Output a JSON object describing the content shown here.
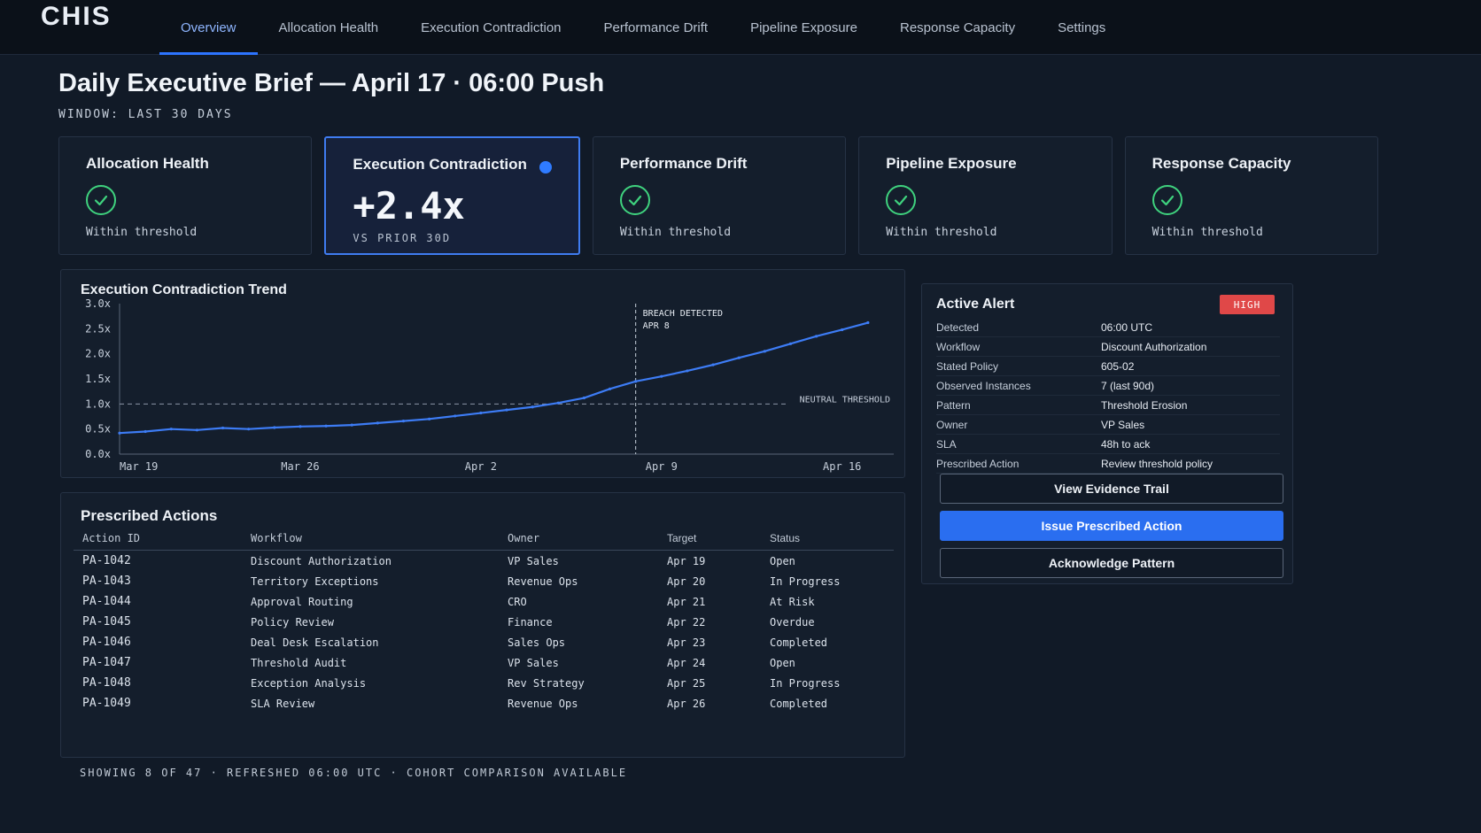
{
  "app": {
    "brand": "CHIS"
  },
  "nav": {
    "tabs": [
      {
        "label": "Overview",
        "active": true
      },
      {
        "label": "Allocation Health"
      },
      {
        "label": "Execution Contradiction"
      },
      {
        "label": "Performance Drift"
      },
      {
        "label": "Pipeline Exposure"
      },
      {
        "label": "Response Capacity"
      },
      {
        "label": "Settings"
      }
    ]
  },
  "header": {
    "title": "Daily Executive Brief — April 17 · 06:00 Push",
    "window": "WINDOW: LAST 30 DAYS"
  },
  "kpis": [
    {
      "title": "Allocation Health",
      "status": "Within threshold",
      "icon": "check-circle-icon"
    },
    {
      "title": "Execution Contradiction",
      "value": "+2.4x",
      "sub": "VS PRIOR 30D",
      "indicator": "#2f7bff"
    },
    {
      "title": "Performance Drift",
      "status": "Within threshold",
      "icon": "check-circle-icon"
    },
    {
      "title": "Pipeline Exposure",
      "status": "Within threshold",
      "icon": "check-circle-icon"
    },
    {
      "title": "Response Capacity",
      "status": "Within threshold",
      "icon": "check-circle-icon"
    }
  ],
  "trend": {
    "title": "Execution Contradiction Trend",
    "threshold_label": "NEUTRAL THRESHOLD",
    "breach_label_1": "BREACH DETECTED",
    "breach_label_2": "APR 8"
  },
  "chart_data": {
    "type": "line",
    "title": "Execution Contradiction Trend",
    "y_tick_labels": [
      "0.0x",
      "0.5x",
      "1.0x",
      "1.5x",
      "2.0x",
      "2.5x",
      "3.0x"
    ],
    "ylim": [
      0,
      3
    ],
    "x_tick_labels": [
      "Mar 19",
      "Mar 26",
      "Apr 2",
      "Apr 9",
      "Apr 16"
    ],
    "xlim": [
      0,
      30
    ],
    "x_tick_positions": [
      0,
      7,
      14,
      21,
      28
    ],
    "grid": false,
    "threshold": 1.0,
    "breach_x": 20,
    "series": [
      {
        "color": "#3d7cf5",
        "x": [
          0,
          1,
          2,
          3,
          4,
          5,
          6,
          7,
          8,
          9,
          10,
          11,
          12,
          13,
          14,
          15,
          16,
          17,
          18,
          19,
          20,
          21,
          22,
          23,
          24,
          25,
          26,
          27,
          28,
          29
        ],
        "values": [
          0.42,
          0.45,
          0.5,
          0.48,
          0.52,
          0.5,
          0.53,
          0.55,
          0.56,
          0.58,
          0.62,
          0.66,
          0.7,
          0.76,
          0.82,
          0.88,
          0.94,
          1.02,
          1.12,
          1.3,
          1.45,
          1.55,
          1.66,
          1.78,
          1.92,
          2.05,
          2.2,
          2.35,
          2.48,
          2.62
        ]
      }
    ]
  },
  "actions": {
    "title": "Prescribed Actions",
    "columns": [
      "Action ID",
      "Workflow",
      "Owner",
      "Target",
      "Status"
    ],
    "rows": [
      {
        "id": "PA-1042",
        "workflow": "Discount Authorization",
        "owner": "VP Sales",
        "target": "Apr 19",
        "status": "Open"
      },
      {
        "id": "PA-1043",
        "workflow": "Territory Exceptions",
        "owner": "Revenue Ops",
        "target": "Apr 20",
        "status": "In Progress"
      },
      {
        "id": "PA-1044",
        "workflow": "Approval Routing",
        "owner": "CRO",
        "target": "Apr 21",
        "status": "At Risk"
      },
      {
        "id": "PA-1045",
        "workflow": "Policy Review",
        "owner": "Finance",
        "target": "Apr 22",
        "status": "Overdue"
      },
      {
        "id": "PA-1046",
        "workflow": "Deal Desk Escalation",
        "owner": "Sales Ops",
        "target": "Apr 23",
        "status": "Completed"
      },
      {
        "id": "PA-1047",
        "workflow": "Threshold Audit",
        "owner": "VP Sales",
        "target": "Apr 24",
        "status": "Open"
      },
      {
        "id": "PA-1048",
        "workflow": "Exception Analysis",
        "owner": "Rev Strategy",
        "target": "Apr 25",
        "status": "In Progress"
      },
      {
        "id": "PA-1049",
        "workflow": "SLA Review",
        "owner": "Revenue Ops",
        "target": "Apr 26",
        "status": "Completed"
      }
    ],
    "footer": "SHOWING 8 OF 47 · REFRESHED 06:00 UTC · COHORT COMPARISON AVAILABLE"
  },
  "alert": {
    "title": "Active Alert",
    "severity": "HIGH",
    "fields": [
      {
        "key": "Detected",
        "value": "06:00 UTC"
      },
      {
        "key": "Workflow",
        "value": "Discount Authorization"
      },
      {
        "key": "Stated Policy",
        "value": "605-02"
      },
      {
        "key": "Observed Instances",
        "value": "7 (last 90d)"
      },
      {
        "key": "Pattern",
        "value": "Threshold Erosion"
      },
      {
        "key": "Owner",
        "value": "VP Sales"
      },
      {
        "key": "SLA",
        "value": "48h to ack"
      },
      {
        "key": "Prescribed Action",
        "value": "Review threshold policy"
      }
    ],
    "buttons": {
      "evidence": "View Evidence Trail",
      "issue": "Issue Prescribed Action",
      "acknowledge": "Acknowledge Pattern"
    }
  }
}
